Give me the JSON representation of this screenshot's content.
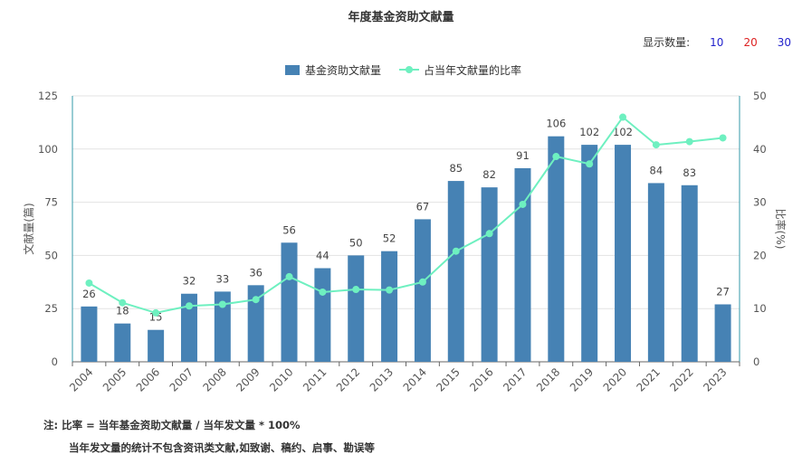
{
  "page_title": "年度基金资助文献量",
  "display_count": {
    "label": "显示数量:",
    "options": [
      {
        "label": "10",
        "color": "#2222cc"
      },
      {
        "label": "20",
        "color": "#dd2222"
      },
      {
        "label": "30",
        "color": "#2222cc"
      }
    ]
  },
  "notes": {
    "line1": "注:   比率 = 当年基金资助文献量 / 当年发文量 * 100%",
    "line2": "当年发文量的统计不包含资讯类文献,如致谢、稿约、启事、勘误等"
  },
  "chart_data": {
    "type": "bar",
    "title": "年度基金资助文献量",
    "categories": [
      "2004",
      "2005",
      "2006",
      "2007",
      "2008",
      "2009",
      "2010",
      "2011",
      "2012",
      "2013",
      "2014",
      "2015",
      "2016",
      "2017",
      "2018",
      "2019",
      "2020",
      "2021",
      "2022",
      "2023"
    ],
    "series": [
      {
        "name": "基金资助文献量",
        "type": "bar",
        "axis": "left",
        "color": "#4682b4",
        "values": [
          26,
          18,
          15,
          32,
          33,
          36,
          56,
          44,
          50,
          52,
          67,
          85,
          82,
          91,
          106,
          102,
          102,
          84,
          83,
          27
        ]
      },
      {
        "name": "占当年文献量的比率",
        "type": "line",
        "axis": "right",
        "color": "#6ef0c0",
        "values": [
          14.8,
          11.1,
          9.2,
          10.5,
          10.8,
          11.7,
          16.0,
          13.1,
          13.6,
          13.5,
          15.0,
          20.8,
          24.1,
          29.6,
          38.6,
          37.2,
          46.0,
          40.8,
          41.4,
          42.1
        ]
      }
    ],
    "ylabel_left": "文献量(篇)",
    "ylabel_right": "比率(%)",
    "ylim_left": [
      0,
      125
    ],
    "yticks_left": [
      "0",
      "25",
      "50",
      "75",
      "100",
      "125"
    ],
    "ylim_right": [
      0,
      50
    ],
    "yticks_right": [
      "0",
      "10",
      "20",
      "30",
      "40",
      "50"
    ],
    "grid": true,
    "legend_position": "top-center"
  }
}
